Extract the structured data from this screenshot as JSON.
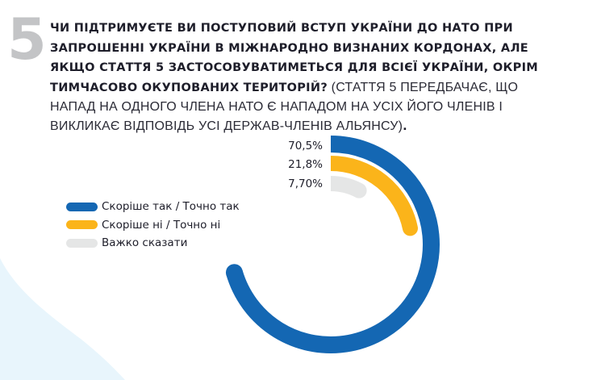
{
  "question": {
    "number": "5",
    "bold_text": "ЧИ ПІДТРИМУЄТЕ ВИ ПОСТУПОВИЙ ВСТУП УКРАЇНИ ДО НАТО ПРИ ЗАПРОШЕННІ УКРАЇНИ В МІЖНАРОДНО ВИЗНАНИХ КОРДОНАХ, АЛЕ ЯКЩО СТАТТЯ 5 ЗАСТОСОВУВАТИМЕТЬСЯ ДЛЯ ВСІЄЇ УКРАЇНИ, ОКРІМ ТИМЧАСОВО ОКУПОВАНИХ ТЕРИТОРІЙ?",
    "normal_text": " (СТАТТЯ 5 ПЕРЕДБАЧАЄ, ЩО НАПАД НА ОДНОГО ЧЛЕНА НАТО Є НАПАДОМ НА УСІХ ЙОГО ЧЛЕНІВ І ВИКЛИКАЄ ВІДПОВІДЬ УСІ ДЕРЖАВ-ЧЛЕНІВ АЛЬЯНСУ)",
    "end_text": "."
  },
  "colors": {
    "blue": "#1467b3",
    "yellow": "#fbb41a",
    "gray": "#e5e6e6",
    "number_gray": "#c3c4c6",
    "wave": "#e8f5fc"
  },
  "legend": [
    {
      "label": "Скоріше так / Точно так",
      "color": "#1467b3"
    },
    {
      "label": "Скоріше ні / Точно ні",
      "color": "#fbb41a"
    },
    {
      "label": "Важко сказати",
      "color": "#e5e6e6"
    }
  ],
  "labels": [
    "70,5%",
    "21,8%",
    "7,70%"
  ],
  "chart_data": {
    "type": "radial-bar",
    "title": "Чи підтримуєте ви поступовий вступ України до НАТО при запрошенні України в міжнародно визнаних кордонах, але якщо стаття 5 застосовуватиметься для всієї України, окрім тимчасово окупованих територій?",
    "categories": [
      "Скоріше так / Точно так",
      "Скоріше ні / Точно ні",
      "Важко сказати"
    ],
    "values": [
      70.5,
      21.8,
      7.7
    ],
    "value_labels": [
      "70,5%",
      "21,8%",
      "7,70%"
    ],
    "unit": "%",
    "legend_position": "left"
  }
}
